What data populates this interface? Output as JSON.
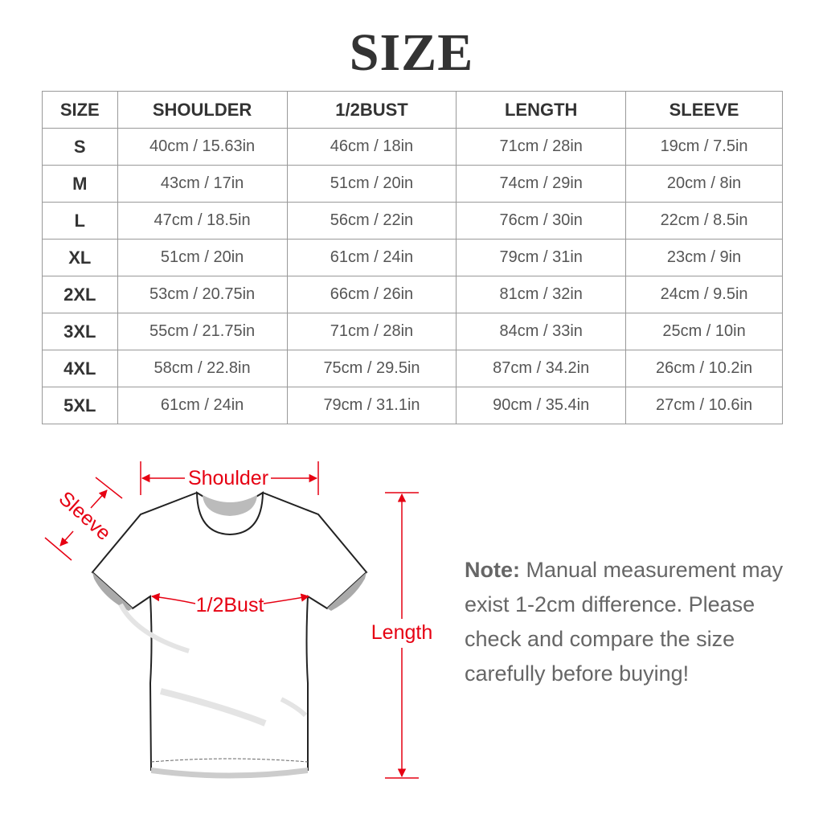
{
  "title": "SIZE",
  "table": {
    "headers": [
      "SIZE",
      "SHOULDER",
      "1/2BUST",
      "LENGTH",
      "SLEEVE"
    ],
    "rows": [
      [
        "S",
        "40cm / 15.63in",
        "46cm / 18in",
        "71cm / 28in",
        "19cm / 7.5in"
      ],
      [
        "M",
        "43cm / 17in",
        "51cm / 20in",
        "74cm / 29in",
        "20cm / 8in"
      ],
      [
        "L",
        "47cm / 18.5in",
        "56cm / 22in",
        "76cm / 30in",
        "22cm / 8.5in"
      ],
      [
        "XL",
        "51cm / 20in",
        "61cm / 24in",
        "79cm / 31in",
        "23cm / 9in"
      ],
      [
        "2XL",
        "53cm / 20.75in",
        "66cm / 26in",
        "81cm / 32in",
        "24cm / 9.5in"
      ],
      [
        "3XL",
        "55cm / 21.75in",
        "71cm / 28in",
        "84cm / 33in",
        "25cm / 10in"
      ],
      [
        "4XL",
        "58cm / 22.8in",
        "75cm / 29.5in",
        "87cm / 34.2in",
        "26cm / 10.2in"
      ],
      [
        "5XL",
        "61cm / 24in",
        "79cm / 31.1in",
        "90cm / 35.4in",
        "27cm / 10.6in"
      ]
    ]
  },
  "diagram": {
    "shoulder": "Shoulder",
    "sleeve": "Sleeve",
    "bust": "1/2Bust",
    "length": "Length",
    "accent_color": "#e60012"
  },
  "note": {
    "label": "Note:",
    "text": " Manual measurement may exist 1-2cm difference. Please check and compare the size carefully before buying!"
  }
}
